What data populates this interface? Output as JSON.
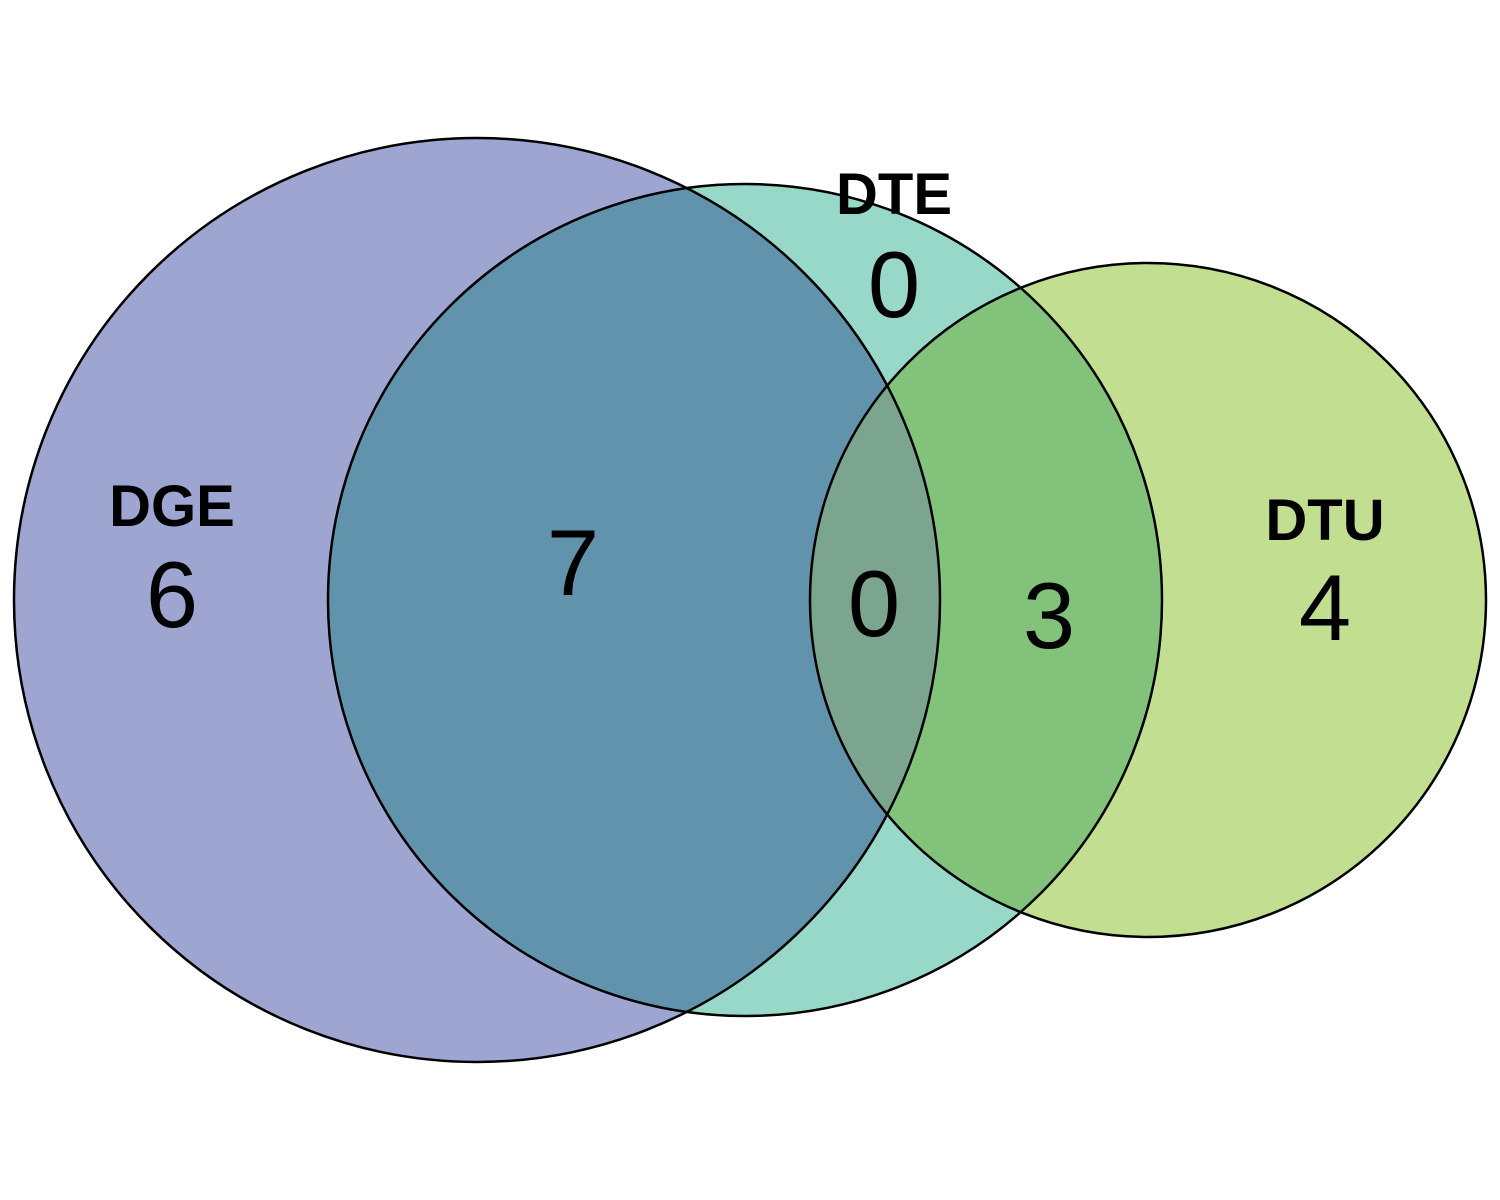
{
  "sets": [
    {
      "id": "dge",
      "name": "DGE",
      "color": "#9da5d0"
    },
    {
      "id": "dte",
      "name": "DTE",
      "color": "#98d8c8"
    },
    {
      "id": "dtu",
      "name": "DTU",
      "color": "#c2df91"
    }
  ],
  "overlap_colors": {
    "dge_dte": "#6194ac",
    "dte_dtu": "#82c27a",
    "all": "#7ba58f"
  },
  "regions": {
    "dge_only": "6",
    "dte_only": "0",
    "dtu_only": "4",
    "dge_dte": "7",
    "dte_dtu": "3",
    "dge_dte_dtu": "0"
  }
}
